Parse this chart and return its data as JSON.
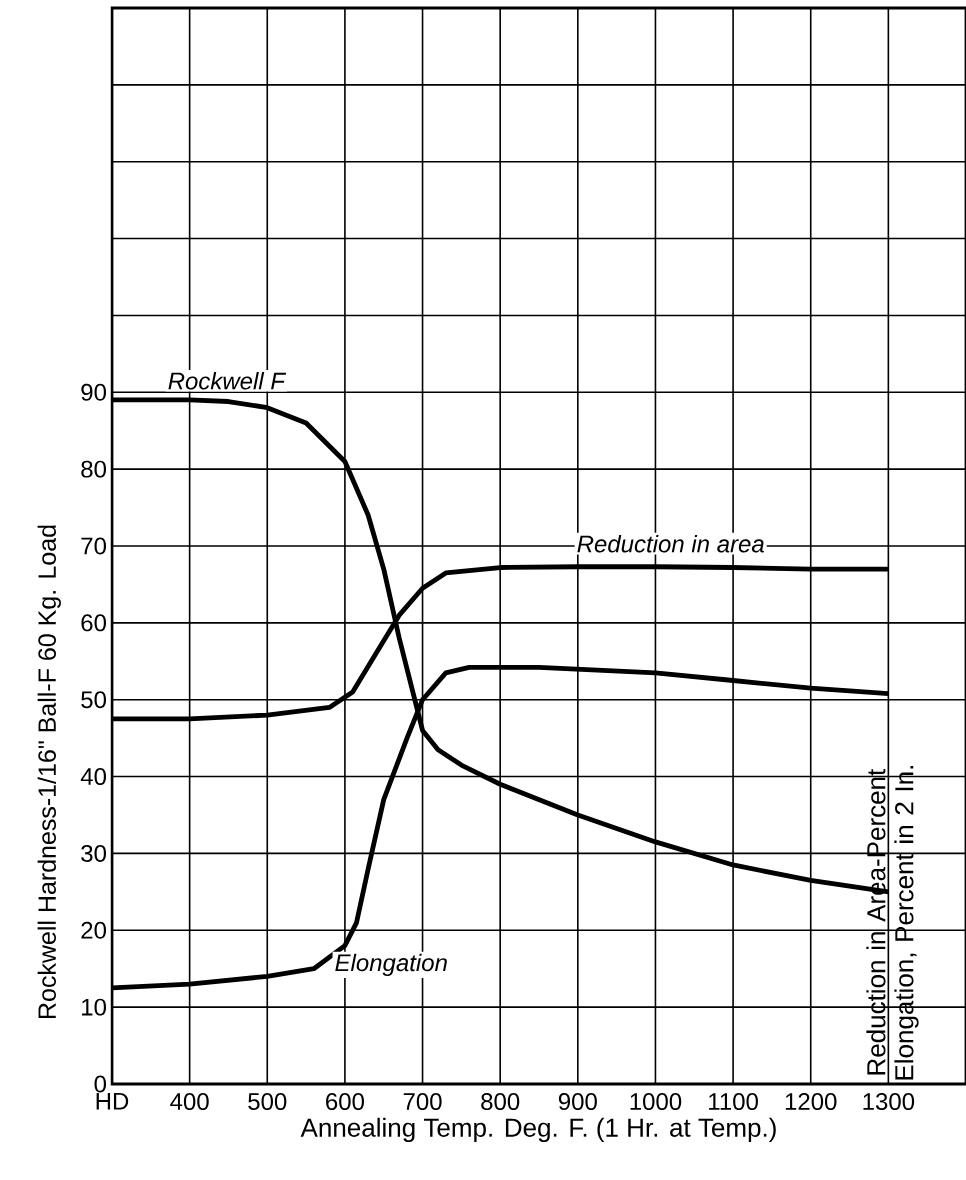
{
  "chart_data": {
    "type": "line",
    "xlabel": "Annealing Temp. Deg. F. (1 Hr. at Temp.)",
    "ylabel": "Rockwell Hardness-1/16\" Ball-F 60 Kg. Load",
    "y2label": "Reduction in Area-Percent Elongation, Percent in 2 In.",
    "xlim": [
      300,
      1400
    ],
    "ylim": [
      0,
      140
    ],
    "xticks": [
      {
        "value": 300,
        "label": "HD"
      },
      400,
      500,
      600,
      700,
      800,
      900,
      1000,
      1100,
      1200,
      1300
    ],
    "yticks": [
      0,
      10,
      20,
      30,
      40,
      50,
      60,
      70,
      80,
      90,
      {
        "value": 100,
        "label": null
      },
      {
        "value": 110,
        "label": null
      },
      {
        "value": 120,
        "label": null
      },
      {
        "value": 130,
        "label": null
      }
    ],
    "grid": true,
    "line_style": "solid",
    "series": [
      {
        "name": "Rockwell F",
        "color": "#000000",
        "x": [
          300,
          400,
          450,
          500,
          550,
          600,
          630,
          650,
          670,
          690,
          700,
          720,
          750,
          800,
          900,
          1000,
          1100,
          1200,
          1300
        ],
        "values": [
          89,
          89,
          88.8,
          88,
          86,
          81,
          74,
          67,
          58,
          50,
          46,
          43.5,
          41.5,
          39,
          35,
          31.5,
          28.5,
          26.5,
          25
        ]
      },
      {
        "name": "Reduction in area",
        "color": "#000000",
        "x": [
          300,
          400,
          500,
          580,
          610,
          640,
          670,
          700,
          730,
          800,
          900,
          1000,
          1100,
          1200,
          1300
        ],
        "values": [
          47.5,
          47.5,
          48,
          49,
          51,
          56,
          61,
          64.5,
          66.5,
          67.2,
          67.3,
          67.3,
          67.2,
          67,
          67
        ]
      },
      {
        "name": "Elongation",
        "color": "#000000",
        "x": [
          300,
          400,
          500,
          560,
          600,
          615,
          630,
          650,
          680,
          700,
          730,
          760,
          850,
          1000,
          1100,
          1200,
          1300
        ],
        "values": [
          12.5,
          13,
          14,
          15,
          18,
          21,
          28,
          37,
          45,
          50,
          53.5,
          54.2,
          54.2,
          53.5,
          52.5,
          51.5,
          50.8
        ]
      }
    ]
  }
}
